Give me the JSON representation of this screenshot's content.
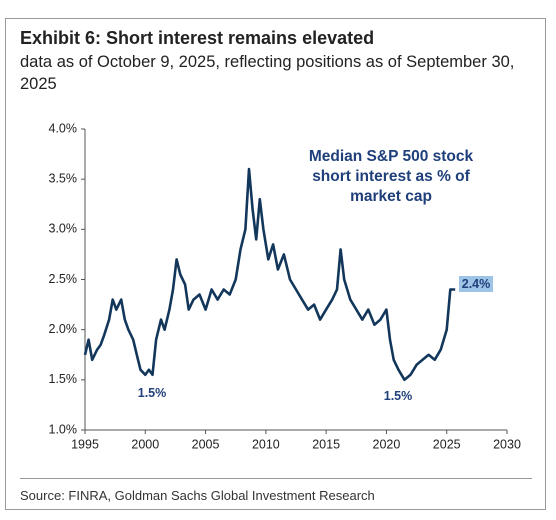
{
  "chart_data": {
    "type": "line",
    "title": "Exhibit 6: Short interest remains elevated",
    "subtitle": "data as of October 9, 2025, reflecting positions as of September 30, 2025",
    "source": "Source: FINRA, Goldman Sachs Global Investment Research",
    "annotations": [
      "Median S&P 500 stock short interest as % of market cap",
      "1.5%",
      "1.5%",
      "2.4%"
    ],
    "color": "#13375b",
    "x": [
      1995.0,
      1995.3,
      1995.6,
      1996.0,
      1996.3,
      1996.6,
      1997.0,
      1997.3,
      1997.6,
      1998.0,
      1998.3,
      1998.6,
      1999.0,
      1999.3,
      1999.6,
      2000.0,
      2000.3,
      2000.6,
      2000.9,
      2001.3,
      2001.6,
      2002.0,
      2002.3,
      2002.6,
      2002.9,
      2003.3,
      2003.6,
      2004.0,
      2004.5,
      2005.0,
      2005.5,
      2006.0,
      2006.5,
      2007.0,
      2007.5,
      2007.9,
      2008.3,
      2008.6,
      2008.9,
      2009.2,
      2009.5,
      2009.8,
      2010.2,
      2010.6,
      2011.0,
      2011.5,
      2012.0,
      2012.5,
      2013.0,
      2013.5,
      2014.0,
      2014.5,
      2015.0,
      2015.5,
      2015.9,
      2016.2,
      2016.5,
      2017.0,
      2017.5,
      2018.0,
      2018.5,
      2019.0,
      2019.5,
      2020.0,
      2020.3,
      2020.6,
      2021.0,
      2021.5,
      2022.0,
      2022.5,
      2023.0,
      2023.5,
      2024.0,
      2024.5,
      2025.0,
      2025.3,
      2025.7
    ],
    "values": [
      1.75,
      1.9,
      1.7,
      1.8,
      1.85,
      1.95,
      2.1,
      2.3,
      2.2,
      2.3,
      2.1,
      2.0,
      1.9,
      1.75,
      1.6,
      1.55,
      1.6,
      1.55,
      1.9,
      2.1,
      2.0,
      2.2,
      2.4,
      2.7,
      2.55,
      2.45,
      2.2,
      2.3,
      2.35,
      2.2,
      2.4,
      2.3,
      2.4,
      2.35,
      2.5,
      2.8,
      3.0,
      3.6,
      3.2,
      2.9,
      3.3,
      3.0,
      2.7,
      2.85,
      2.6,
      2.75,
      2.5,
      2.4,
      2.3,
      2.2,
      2.25,
      2.1,
      2.2,
      2.3,
      2.4,
      2.8,
      2.5,
      2.3,
      2.2,
      2.1,
      2.2,
      2.05,
      2.1,
      2.2,
      1.9,
      1.7,
      1.6,
      1.5,
      1.55,
      1.65,
      1.7,
      1.75,
      1.7,
      1.8,
      2.0,
      2.4,
      2.4
    ],
    "xlim": [
      1995,
      2030
    ],
    "xticks": [
      1995,
      2000,
      2005,
      2010,
      2015,
      2020,
      2025,
      2030
    ],
    "ylim": [
      1.0,
      4.0
    ],
    "yticks": [
      {
        "value": 1.0,
        "label": "1.0%"
      },
      {
        "value": 1.5,
        "label": "1.5%"
      },
      {
        "value": 2.0,
        "label": "2.0%"
      },
      {
        "value": 2.5,
        "label": "2.5%"
      },
      {
        "value": 3.0,
        "label": "3.0%"
      },
      {
        "value": 3.5,
        "label": "3.5%"
      },
      {
        "value": 4.0,
        "label": "4.0%"
      }
    ],
    "grid": false
  }
}
